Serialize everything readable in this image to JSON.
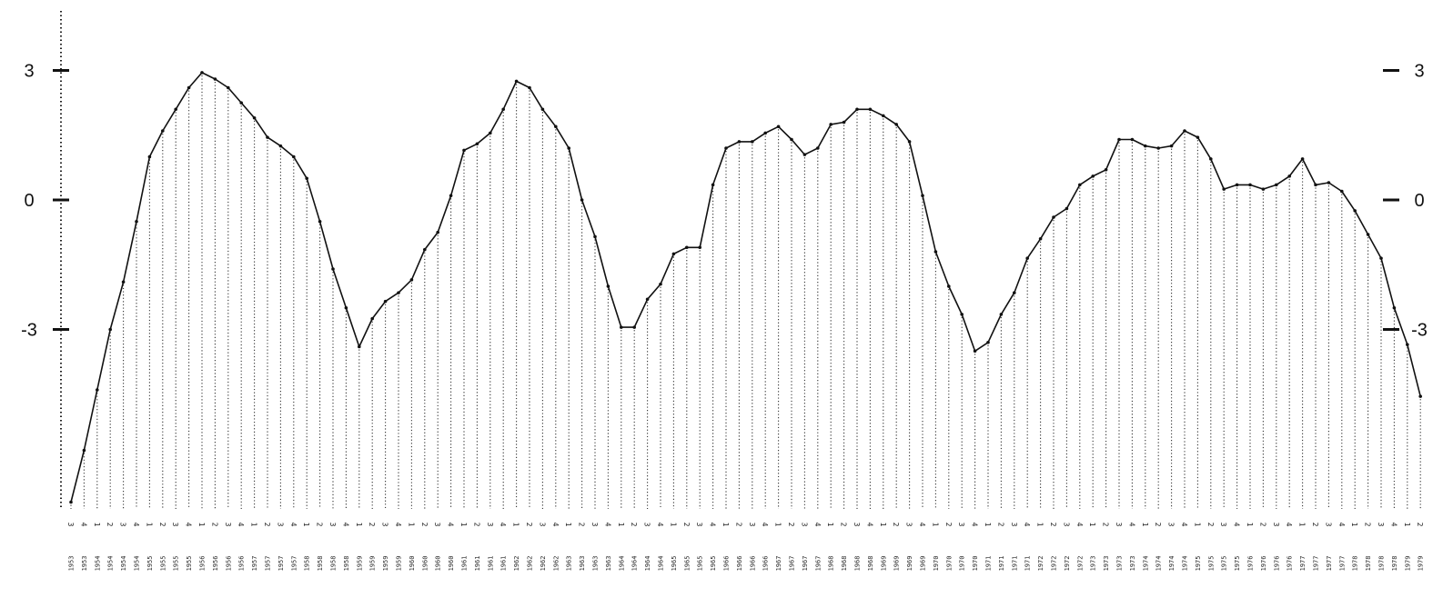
{
  "chart_data": {
    "type": "area",
    "title": "",
    "xlabel": "",
    "ylabel": "",
    "ylim": [
      -7.2,
      3.8
    ],
    "y_ticks_left": [
      "3",
      "0",
      "-3"
    ],
    "y_ticks_right": [
      "3",
      "0",
      "-3"
    ],
    "y_tick_values": [
      3,
      0,
      -3
    ],
    "grid": "vertical dotted drop lines at every quarter",
    "colors": {
      "line": "#111111",
      "dropline": "#333333",
      "axis": "#222222"
    },
    "quarters": [
      "3",
      "4",
      "1",
      "2",
      "3",
      "4",
      "1",
      "2",
      "3",
      "4",
      "1",
      "2",
      "3",
      "4",
      "1",
      "2",
      "3",
      "4",
      "1",
      "2",
      "3",
      "4",
      "1",
      "2",
      "3",
      "4",
      "1",
      "2",
      "3",
      "4",
      "1",
      "2",
      "3",
      "4",
      "1",
      "2",
      "3",
      "4",
      "1",
      "2",
      "3",
      "4",
      "1",
      "2",
      "3",
      "4",
      "1",
      "2",
      "3",
      "4",
      "1",
      "2",
      "3",
      "4",
      "1",
      "2",
      "3",
      "4",
      "1",
      "2",
      "3",
      "4",
      "1",
      "2",
      "3",
      "4",
      "1",
      "2",
      "3",
      "4",
      "1",
      "2",
      "3",
      "4",
      "1",
      "2",
      "3",
      "4",
      "1",
      "2",
      "3",
      "4",
      "1",
      "2",
      "3",
      "4",
      "1",
      "2",
      "3",
      "4",
      "1",
      "2",
      "3",
      "4",
      "1",
      "2",
      "3",
      "4",
      "1",
      "2",
      "3",
      "4",
      "1",
      "2"
    ],
    "years": [
      "1953",
      "1953",
      "1954",
      "1954",
      "1954",
      "1954",
      "1955",
      "1955",
      "1955",
      "1955",
      "1956",
      "1956",
      "1956",
      "1956",
      "1957",
      "1957",
      "1957",
      "1957",
      "1958",
      "1958",
      "1958",
      "1958",
      "1959",
      "1959",
      "1959",
      "1959",
      "1960",
      "1960",
      "1960",
      "1960",
      "1961",
      "1961",
      "1961",
      "1961",
      "1962",
      "1962",
      "1962",
      "1962",
      "1963",
      "1963",
      "1963",
      "1963",
      "1964",
      "1964",
      "1964",
      "1964",
      "1965",
      "1965",
      "1965",
      "1965",
      "1966",
      "1966",
      "1966",
      "1966",
      "1967",
      "1967",
      "1967",
      "1967",
      "1968",
      "1968",
      "1968",
      "1968",
      "1969",
      "1969",
      "1969",
      "1969",
      "1970",
      "1970",
      "1970",
      "1970",
      "1971",
      "1971",
      "1971",
      "1971",
      "1972",
      "1972",
      "1972",
      "1972",
      "1973",
      "1973",
      "1973",
      "1973",
      "1974",
      "1974",
      "1974",
      "1974",
      "1975",
      "1975",
      "1975",
      "1975",
      "1976",
      "1976",
      "1976",
      "1976",
      "1977",
      "1977",
      "1977",
      "1977",
      "1978",
      "1978",
      "1978",
      "1978",
      "1979",
      "1979"
    ],
    "series": [
      {
        "values": [
          -7.0,
          -5.8,
          -4.4,
          -3.0,
          -1.9,
          -0.5,
          1.0,
          1.6,
          2.1,
          2.6,
          2.95,
          2.8,
          2.6,
          2.25,
          1.9,
          1.45,
          1.25,
          1.0,
          0.5,
          -0.5,
          -1.6,
          -2.5,
          -3.4,
          -2.75,
          -2.35,
          -2.15,
          -1.85,
          -1.15,
          -0.75,
          0.1,
          1.15,
          1.3,
          1.55,
          2.1,
          2.75,
          2.6,
          2.1,
          1.7,
          1.2,
          0.0,
          -0.85,
          -2.0,
          -2.95,
          -2.95,
          -2.3,
          -1.95,
          -1.25,
          -1.1,
          -1.1,
          0.35,
          1.2,
          1.35,
          1.35,
          1.55,
          1.7,
          1.4,
          1.05,
          1.2,
          1.75,
          1.8,
          2.1,
          2.1,
          1.95,
          1.75,
          1.35,
          0.1,
          -1.2,
          -2.0,
          -2.65,
          -3.5,
          -3.3,
          -2.65,
          -2.15,
          -1.35,
          -0.9,
          -0.4,
          -0.2,
          0.35,
          0.55,
          0.7,
          1.4,
          1.4,
          1.25,
          1.2,
          1.25,
          1.6,
          1.45,
          0.95,
          0.25,
          0.35,
          0.35,
          0.25,
          0.35,
          0.55,
          0.95,
          0.35,
          0.4,
          0.2,
          -0.25,
          -0.8,
          -1.35,
          -2.5,
          -3.35,
          -4.55
        ]
      }
    ]
  }
}
